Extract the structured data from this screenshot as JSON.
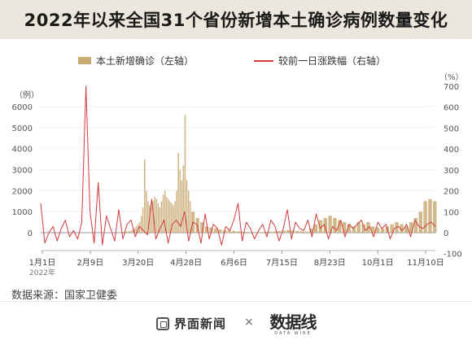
{
  "title": "2022年以来全国31个省份新增本土确诊病例数量变化",
  "legend": {
    "bar_label": "本土新增确诊（左轴）",
    "line_label": "较前一日涨跌幅（右轴）"
  },
  "colors": {
    "bar": "#c9ab75",
    "line": "#d33b3b",
    "title_band": "#ece7dc"
  },
  "source": "数据来源：国家卫健委",
  "brand": {
    "publisher": "界面新闻",
    "separator": "×",
    "partner": "数据线",
    "partner_sub": "DATA WIRE"
  },
  "chart_data": {
    "type": "bar",
    "left_axis": {
      "unit": "（例）",
      "ticks": [
        "0",
        "1000",
        "2000",
        "3000",
        "4000",
        "5000",
        "6000"
      ],
      "range": [
        -600,
        6600
      ]
    },
    "right_axis": {
      "unit": "（%）",
      "ticks": [
        "-100",
        "0",
        "100",
        "200",
        "300",
        "400",
        "500",
        "600",
        "700"
      ],
      "range": [
        -100,
        700
      ]
    },
    "x_ticks": [
      "1月1日",
      "2月9日",
      "3月20日",
      "4月28日",
      "6月6日",
      "7月15日",
      "8月23日",
      "10月1日",
      "11月10日"
    ],
    "x_year": "2022年",
    "series": [
      {
        "kind": "bar",
        "values_by_segment": [
          [
            20,
            30,
            40,
            50,
            60,
            80,
            100,
            150,
            200,
            300,
            400,
            500,
            800,
            1200,
            3500,
            2000,
            1500,
            1300,
            1200,
            1500,
            1700,
            1600,
            1400,
            1200,
            1500,
            1800,
            2000,
            1700,
            1600,
            1500,
            1400,
            1300,
            1500,
            2000,
            3800,
            3000,
            2500,
            3200,
            5600,
            2500,
            2000,
            1500
          ],
          [
            1000,
            700,
            500,
            300,
            250,
            200,
            150,
            120,
            100,
            80,
            60,
            50,
            40,
            30,
            30,
            30,
            40,
            50,
            60,
            80,
            100,
            120,
            100,
            80,
            60,
            50
          ],
          [
            200,
            400,
            600,
            700,
            800,
            700,
            600,
            500,
            400,
            300,
            500,
            400,
            500,
            300,
            250,
            200,
            300,
            400,
            500,
            400,
            300,
            500,
            700,
            1000,
            1500,
            1600,
            1500
          ]
        ]
      },
      {
        "kind": "line",
        "values": [
          140,
          -50,
          0,
          30,
          -40,
          20,
          60,
          -20,
          10,
          -30,
          50,
          700,
          100,
          -50,
          240,
          -60,
          80,
          20,
          -40,
          110,
          -30,
          40,
          60,
          -20,
          30,
          10,
          -10,
          160,
          -30,
          20,
          60,
          -50,
          40,
          60,
          30,
          100,
          -40,
          50,
          40,
          -50,
          90,
          -30,
          40,
          20,
          -60,
          30,
          10,
          60,
          140,
          -40,
          50,
          20,
          -30,
          10,
          40,
          -20,
          60,
          30,
          -40,
          20,
          110,
          -30,
          50,
          20,
          10,
          60,
          -20,
          90,
          20,
          40,
          -30,
          30,
          10,
          60,
          -20,
          40,
          20,
          40,
          60,
          10,
          30,
          -20,
          50,
          20,
          40,
          -30,
          20,
          30,
          10,
          40,
          -20,
          60,
          30,
          20,
          40,
          50,
          30
        ]
      }
    ]
  }
}
